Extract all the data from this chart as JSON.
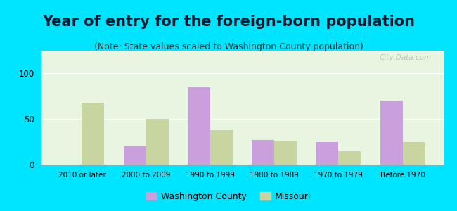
{
  "title": "Year of entry for the foreign-born population",
  "subtitle": "(Note: State values scaled to Washington County population)",
  "categories": [
    "2010 or later",
    "2000 to 2009",
    "1990 to 1999",
    "1980 to 1989",
    "1970 to 1979",
    "Before 1970"
  ],
  "washington_county": [
    0,
    20,
    85,
    27,
    25,
    70
  ],
  "missouri": [
    68,
    50,
    38,
    26,
    15,
    25
  ],
  "washington_color": "#c9a0dc",
  "missouri_color": "#c8d5a0",
  "background_outer": "#00e5ff",
  "background_inner": "#e8f5e0",
  "ylim": [
    0,
    125
  ],
  "yticks": [
    0,
    50,
    100
  ],
  "bar_width": 0.35,
  "legend_washington": "Washington County",
  "legend_missouri": "Missouri",
  "title_fontsize": 15,
  "subtitle_fontsize": 9,
  "watermark": "City-Data.com"
}
